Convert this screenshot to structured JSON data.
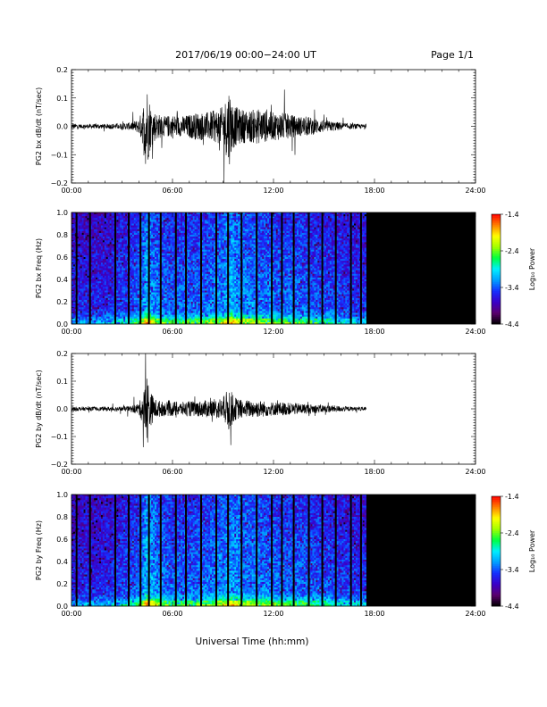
{
  "header": {
    "title": "2017/06/19  00:00−24:00 UT",
    "page": "Page 1/1"
  },
  "colors": {
    "trace": "#000000",
    "axes": "#000000",
    "background": "#ffffff",
    "colormap": [
      "#000000",
      "#5b006e",
      "#3a00c8",
      "#1530ff",
      "#00a0ff",
      "#00f0ff",
      "#00ff40",
      "#a0ff00",
      "#ffff00",
      "#ff8000",
      "#ff0000"
    ]
  },
  "x_axis": {
    "title": "Universal Time (hh:mm)",
    "tick_labels": [
      "00:00",
      "06:00",
      "12:00",
      "18:00",
      "24:00"
    ],
    "range_hours": [
      0,
      24
    ]
  },
  "chart_data": [
    {
      "type": "line",
      "ylabel": "PG2 bx dB/dt (nT/sec)",
      "ylim": [
        -0.2,
        0.2
      ],
      "y_tick_labels": [
        "0.2",
        "0.1",
        "0.0",
        "−0.1",
        "−0.2"
      ],
      "data_end_hours": 17.5,
      "series": [
        {
          "x_hours": [
            0,
            0.5,
            1,
            1.5,
            2,
            2.5,
            3,
            3.5,
            4,
            4.25,
            4.4,
            4.5,
            4.6,
            4.75,
            5,
            5.5,
            6,
            6.5,
            7,
            7.5,
            8,
            8.5,
            9,
            9.2,
            9.35,
            9.5,
            9.7,
            10,
            10.5,
            11,
            11.5,
            12,
            12.5,
            13,
            13.5,
            14,
            14.5,
            15,
            15.5,
            16,
            16.5,
            17,
            17.5
          ],
          "envelope": [
            0.015,
            0.01,
            0.01,
            0.012,
            0.012,
            0.014,
            0.015,
            0.02,
            0.035,
            0.1,
            0.2,
            0.21,
            0.15,
            0.1,
            0.07,
            0.05,
            0.06,
            0.05,
            0.06,
            0.07,
            0.07,
            0.08,
            0.1,
            0.15,
            0.21,
            0.14,
            0.1,
            0.09,
            0.08,
            0.09,
            0.08,
            0.07,
            0.07,
            0.06,
            0.05,
            0.05,
            0.04,
            0.03,
            0.025,
            0.02,
            0.015,
            0.012,
            0.01
          ]
        }
      ]
    },
    {
      "type": "heatmap",
      "ylabel": "PG2 bx Freq (Hz)",
      "ylim": [
        0.0,
        1.0
      ],
      "y_tick_labels": [
        "1.0",
        "0.8",
        "0.6",
        "0.4",
        "0.2",
        "0.0"
      ],
      "colorbar": {
        "label": "Log₁₀ Power",
        "range": [
          -4.4,
          -1.4
        ],
        "tick_labels": [
          "-1.4",
          "-2.4",
          "-3.4",
          "-4.4"
        ]
      },
      "data_end_hours": 17.5,
      "activity_profile": {
        "x_hours": [
          0,
          2,
          4,
          4.5,
          5,
          6,
          8,
          9,
          9.5,
          10,
          12,
          14,
          16,
          17.5
        ],
        "level": [
          0.25,
          0.25,
          0.45,
          0.75,
          0.55,
          0.45,
          0.5,
          0.6,
          0.75,
          0.6,
          0.5,
          0.45,
          0.35,
          0.3
        ]
      },
      "gap_hours": [
        0.3,
        1.1,
        2.6,
        3.4,
        4.1,
        4.6,
        5.3,
        6.2,
        6.8,
        7.7,
        8.6,
        9.3,
        10.1,
        11.0,
        11.9,
        12.5,
        13.2,
        14.1,
        14.9,
        15.7,
        16.6,
        17.2
      ]
    },
    {
      "type": "line",
      "ylabel": "PG2 by dB/dt (nT/sec)",
      "ylim": [
        -0.2,
        0.2
      ],
      "y_tick_labels": [
        "0.2",
        "0.1",
        "0.0",
        "−0.1",
        "−0.2"
      ],
      "data_end_hours": 17.5,
      "series": [
        {
          "x_hours": [
            0,
            0.5,
            1,
            1.5,
            2,
            2.5,
            3,
            3.5,
            4,
            4.25,
            4.4,
            4.5,
            4.6,
            4.75,
            5,
            5.5,
            6,
            6.5,
            7,
            7.5,
            8,
            8.5,
            9,
            9.2,
            9.35,
            9.5,
            9.7,
            10,
            10.5,
            11,
            11.5,
            12,
            12.5,
            13,
            13.5,
            14,
            14.5,
            15,
            15.5,
            16,
            16.5,
            17,
            17.5
          ],
          "envelope": [
            0.012,
            0.01,
            0.01,
            0.01,
            0.01,
            0.012,
            0.012,
            0.015,
            0.03,
            0.08,
            0.14,
            0.2,
            0.12,
            0.08,
            0.05,
            0.035,
            0.04,
            0.035,
            0.04,
            0.04,
            0.045,
            0.05,
            0.06,
            0.09,
            0.12,
            0.09,
            0.06,
            0.05,
            0.045,
            0.045,
            0.04,
            0.035,
            0.035,
            0.03,
            0.03,
            0.025,
            0.022,
            0.02,
            0.018,
            0.015,
            0.012,
            0.01,
            0.01
          ]
        }
      ]
    },
    {
      "type": "heatmap",
      "ylabel": "PG2 by Freq (Hz)",
      "ylim": [
        0.0,
        1.0
      ],
      "y_tick_labels": [
        "1.0",
        "0.8",
        "0.6",
        "0.4",
        "0.2",
        "0.0"
      ],
      "colorbar": {
        "label": "Log₁₀ Power",
        "range": [
          -4.4,
          -1.4
        ],
        "tick_labels": [
          "-1.4",
          "-2.4",
          "-3.4",
          "-4.4"
        ]
      },
      "data_end_hours": 17.5,
      "activity_profile": {
        "x_hours": [
          0,
          2,
          4,
          4.5,
          5,
          6,
          8,
          9,
          9.5,
          10,
          12,
          14,
          16,
          17.5
        ],
        "level": [
          0.25,
          0.25,
          0.45,
          0.8,
          0.6,
          0.45,
          0.5,
          0.6,
          0.7,
          0.6,
          0.5,
          0.45,
          0.35,
          0.3
        ]
      },
      "gap_hours": [
        0.3,
        1.1,
        2.6,
        3.4,
        4.1,
        4.6,
        5.3,
        6.2,
        6.8,
        7.7,
        8.6,
        9.3,
        10.1,
        11.0,
        11.9,
        12.5,
        13.2,
        14.1,
        14.9,
        15.7,
        16.6,
        17.2
      ]
    }
  ]
}
